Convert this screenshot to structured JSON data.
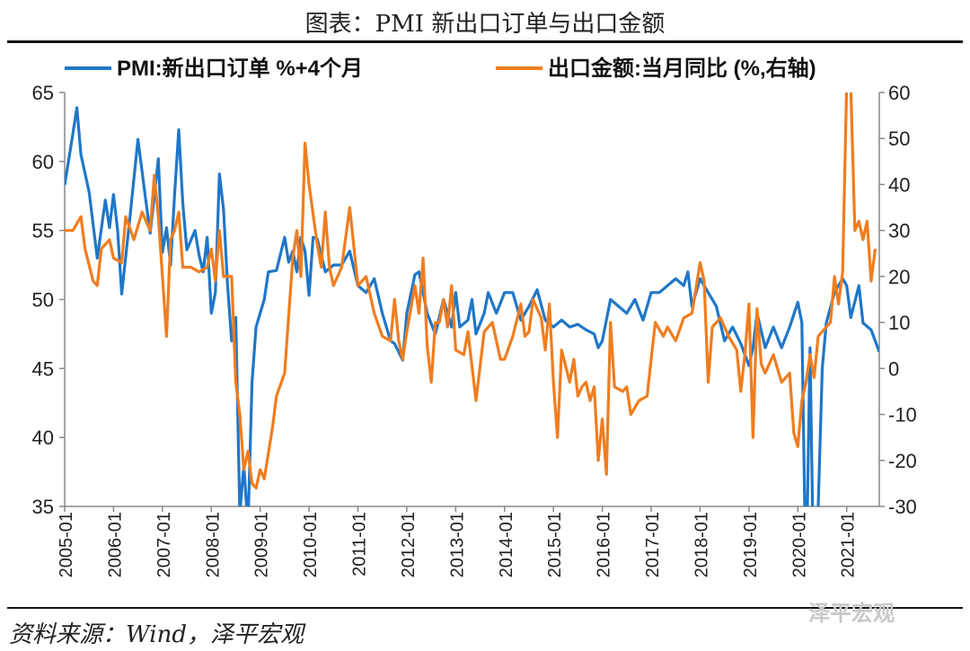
{
  "header": {
    "title": "图表：PMI 新出口订单与出口金额"
  },
  "footer": {
    "source": "资料来源：Wind，泽平宏观",
    "watermark": "泽平宏观"
  },
  "chart_data": {
    "type": "line",
    "title": "",
    "legend": {
      "placement": "top",
      "entries": [
        "PMI:新出口订单 %+4个月",
        "出口金额:当月同比 (%,右轴)"
      ]
    },
    "grid": false,
    "x_axis": {
      "type": "date",
      "start": "2005-01",
      "end": "2021-09",
      "tick_labels": [
        "2005-01",
        "2006-01",
        "2007-01",
        "2008-01",
        "2009-01",
        "2010-01",
        "2011-01",
        "2012-01",
        "2013-01",
        "2014-01",
        "2015-01",
        "2016-01",
        "2017-01",
        "2018-01",
        "2019-01",
        "2020-01",
        "2021-01"
      ]
    },
    "y_left": {
      "range": [
        35,
        65
      ],
      "ticks": [
        35,
        40,
        45,
        50,
        55,
        60,
        65
      ]
    },
    "y_right": {
      "range": [
        -30,
        60
      ],
      "ticks": [
        -30,
        -20,
        -10,
        0,
        10,
        20,
        30,
        40,
        50,
        60
      ]
    },
    "colors": {
      "pmi": "#1f77c8",
      "export": "#f07d1f"
    },
    "series": [
      {
        "name": "PMI:新出口订单 %+4个月",
        "axis": "left",
        "points": [
          [
            "2005-01",
            58.3
          ],
          [
            "2005-03",
            62.0
          ],
          [
            "2005-04",
            63.9
          ],
          [
            "2005-05",
            60.5
          ],
          [
            "2005-07",
            57.8
          ],
          [
            "2005-09",
            53.0
          ],
          [
            "2005-11",
            57.2
          ],
          [
            "2005-12",
            55.2
          ],
          [
            "2006-01",
            57.6
          ],
          [
            "2006-02",
            55.0
          ],
          [
            "2006-03",
            50.4
          ],
          [
            "2006-05",
            55.9
          ],
          [
            "2006-07",
            61.6
          ],
          [
            "2006-09",
            57.0
          ],
          [
            "2006-10",
            54.8
          ],
          [
            "2006-12",
            60.2
          ],
          [
            "2007-01",
            53.4
          ],
          [
            "2007-02",
            55.2
          ],
          [
            "2007-03",
            52.5
          ],
          [
            "2007-04",
            57.6
          ],
          [
            "2007-05",
            62.3
          ],
          [
            "2007-06",
            57.0
          ],
          [
            "2007-07",
            53.6
          ],
          [
            "2007-09",
            55.0
          ],
          [
            "2007-10",
            53.2
          ],
          [
            "2007-11",
            52.0
          ],
          [
            "2007-12",
            54.5
          ],
          [
            "2008-01",
            49.0
          ],
          [
            "2008-02",
            50.5
          ],
          [
            "2008-03",
            59.1
          ],
          [
            "2008-04",
            56.5
          ],
          [
            "2008-05",
            51.0
          ],
          [
            "2008-06",
            47.0
          ],
          [
            "2008-07",
            48.7
          ],
          [
            "2008-08",
            34.5
          ],
          [
            "2008-09",
            38.0
          ],
          [
            "2008-10",
            33.5
          ],
          [
            "2008-11",
            44.0
          ],
          [
            "2008-12",
            48.0
          ],
          [
            "2009-02",
            50.0
          ],
          [
            "2009-03",
            52.0
          ],
          [
            "2009-05",
            52.1
          ],
          [
            "2009-07",
            54.5
          ],
          [
            "2009-08",
            52.7
          ],
          [
            "2009-09",
            53.5
          ],
          [
            "2009-10",
            52.0
          ],
          [
            "2009-11",
            54.5
          ],
          [
            "2009-12",
            53.5
          ],
          [
            "2010-01",
            50.3
          ],
          [
            "2010-02",
            54.5
          ],
          [
            "2010-03",
            54.4
          ],
          [
            "2010-05",
            52.0
          ],
          [
            "2010-07",
            52.5
          ],
          [
            "2010-09",
            52.5
          ],
          [
            "2010-11",
            53.5
          ],
          [
            "2011-01",
            51.0
          ],
          [
            "2011-03",
            50.5
          ],
          [
            "2011-05",
            51.5
          ],
          [
            "2011-07",
            49.0
          ],
          [
            "2011-09",
            47.0
          ],
          [
            "2011-10",
            46.8
          ],
          [
            "2011-12",
            45.6
          ],
          [
            "2012-01",
            49.0
          ],
          [
            "2012-03",
            51.8
          ],
          [
            "2012-04",
            52.0
          ],
          [
            "2012-06",
            49.0
          ],
          [
            "2012-08",
            47.5
          ],
          [
            "2012-10",
            50.0
          ],
          [
            "2012-12",
            48.0
          ],
          [
            "2013-01",
            50.5
          ],
          [
            "2013-02",
            48.0
          ],
          [
            "2013-04",
            48.5
          ],
          [
            "2013-05",
            50.0
          ],
          [
            "2013-06",
            47.5
          ],
          [
            "2013-08",
            49.0
          ],
          [
            "2013-09",
            50.5
          ],
          [
            "2013-11",
            49.0
          ],
          [
            "2014-01",
            50.5
          ],
          [
            "2014-03",
            50.5
          ],
          [
            "2014-05",
            48.5
          ],
          [
            "2014-07",
            49.5
          ],
          [
            "2014-09",
            50.7
          ],
          [
            "2014-11",
            48.5
          ],
          [
            "2015-01",
            48.0
          ],
          [
            "2015-03",
            48.5
          ],
          [
            "2015-05",
            48.0
          ],
          [
            "2015-07",
            48.2
          ],
          [
            "2015-09",
            47.8
          ],
          [
            "2015-11",
            47.5
          ],
          [
            "2015-12",
            46.5
          ],
          [
            "2016-01",
            47.0
          ],
          [
            "2016-03",
            50.0
          ],
          [
            "2016-05",
            49.5
          ],
          [
            "2016-07",
            49.0
          ],
          [
            "2016-09",
            50.0
          ],
          [
            "2016-11",
            48.5
          ],
          [
            "2017-01",
            50.5
          ],
          [
            "2017-03",
            50.5
          ],
          [
            "2017-05",
            51.0
          ],
          [
            "2017-07",
            51.5
          ],
          [
            "2017-09",
            51.0
          ],
          [
            "2017-10",
            52.0
          ],
          [
            "2017-11",
            49.5
          ],
          [
            "2018-01",
            51.5
          ],
          [
            "2018-03",
            50.5
          ],
          [
            "2018-05",
            49.5
          ],
          [
            "2018-07",
            47.0
          ],
          [
            "2018-09",
            48.0
          ],
          [
            "2018-11",
            46.8
          ],
          [
            "2019-01",
            45.2
          ],
          [
            "2019-02",
            46.5
          ],
          [
            "2019-03",
            49.0
          ],
          [
            "2019-05",
            46.5
          ],
          [
            "2019-07",
            48.0
          ],
          [
            "2019-09",
            46.5
          ],
          [
            "2019-11",
            48.0
          ],
          [
            "2020-01",
            49.8
          ],
          [
            "2020-02",
            48.3
          ],
          [
            "2020-03",
            29.0
          ],
          [
            "2020-04",
            46.5
          ],
          [
            "2020-05",
            27.5
          ],
          [
            "2020-06",
            35.0
          ],
          [
            "2020-07",
            45.0
          ],
          [
            "2020-08",
            48.3
          ],
          [
            "2020-10",
            50.5
          ],
          [
            "2020-12",
            51.5
          ],
          [
            "2021-01",
            51.0
          ],
          [
            "2021-02",
            48.7
          ],
          [
            "2021-04",
            51.0
          ],
          [
            "2021-05",
            48.3
          ],
          [
            "2021-07",
            47.8
          ],
          [
            "2021-09",
            46.2
          ]
        ]
      },
      {
        "name": "出口金额:当月同比 (%,右轴)",
        "axis": "right",
        "points": [
          [
            "2005-01",
            30
          ],
          [
            "2005-03",
            30
          ],
          [
            "2005-05",
            33
          ],
          [
            "2005-06",
            26
          ],
          [
            "2005-08",
            19
          ],
          [
            "2005-09",
            18
          ],
          [
            "2005-10",
            26
          ],
          [
            "2005-12",
            28
          ],
          [
            "2006-01",
            24
          ],
          [
            "2006-03",
            23
          ],
          [
            "2006-04",
            33
          ],
          [
            "2006-06",
            28
          ],
          [
            "2006-08",
            34
          ],
          [
            "2006-10",
            30
          ],
          [
            "2006-11",
            42
          ],
          [
            "2006-12",
            33
          ],
          [
            "2007-02",
            7
          ],
          [
            "2007-03",
            28
          ],
          [
            "2007-04",
            30
          ],
          [
            "2007-05",
            34
          ],
          [
            "2007-06",
            22
          ],
          [
            "2007-08",
            22
          ],
          [
            "2007-10",
            21
          ],
          [
            "2007-12",
            22
          ],
          [
            "2008-01",
            26
          ],
          [
            "2008-02",
            19
          ],
          [
            "2008-03",
            30
          ],
          [
            "2008-04",
            20
          ],
          [
            "2008-06",
            20
          ],
          [
            "2008-07",
            -3
          ],
          [
            "2008-08",
            -10
          ],
          [
            "2008-09",
            -22
          ],
          [
            "2008-10",
            -18
          ],
          [
            "2008-11",
            -25
          ],
          [
            "2008-12",
            -26
          ],
          [
            "2009-01",
            -22
          ],
          [
            "2009-02",
            -24
          ],
          [
            "2009-04",
            -13
          ],
          [
            "2009-05",
            -6
          ],
          [
            "2009-07",
            -1
          ],
          [
            "2009-09",
            24
          ],
          [
            "2009-10",
            30
          ],
          [
            "2009-11",
            20
          ],
          [
            "2009-12",
            49
          ],
          [
            "2010-01",
            40
          ],
          [
            "2010-03",
            27
          ],
          [
            "2010-04",
            22
          ],
          [
            "2010-05",
            34
          ],
          [
            "2010-06",
            22
          ],
          [
            "2010-07",
            18
          ],
          [
            "2010-09",
            22
          ],
          [
            "2010-11",
            35
          ],
          [
            "2011-01",
            18
          ],
          [
            "2011-03",
            20
          ],
          [
            "2011-05",
            12
          ],
          [
            "2011-07",
            7
          ],
          [
            "2011-09",
            6
          ],
          [
            "2011-10",
            15
          ],
          [
            "2011-11",
            6
          ],
          [
            "2011-12",
            2
          ],
          [
            "2012-01",
            8
          ],
          [
            "2012-03",
            18
          ],
          [
            "2012-04",
            12
          ],
          [
            "2012-05",
            24
          ],
          [
            "2012-06",
            5
          ],
          [
            "2012-07",
            -3
          ],
          [
            "2012-08",
            10
          ],
          [
            "2012-09",
            10
          ],
          [
            "2012-10",
            15
          ],
          [
            "2012-11",
            9
          ],
          [
            "2012-12",
            18
          ],
          [
            "2013-01",
            4
          ],
          [
            "2013-03",
            3
          ],
          [
            "2013-04",
            8
          ],
          [
            "2013-06",
            -7
          ],
          [
            "2013-08",
            8
          ],
          [
            "2013-10",
            10
          ],
          [
            "2013-12",
            2
          ],
          [
            "2014-01",
            2
          ],
          [
            "2014-03",
            7
          ],
          [
            "2014-05",
            14
          ],
          [
            "2014-06",
            7
          ],
          [
            "2014-07",
            8
          ],
          [
            "2014-08",
            15
          ],
          [
            "2014-10",
            11
          ],
          [
            "2014-11",
            4
          ],
          [
            "2014-12",
            14
          ],
          [
            "2015-01",
            -3
          ],
          [
            "2015-02",
            -15
          ],
          [
            "2015-03",
            4
          ],
          [
            "2015-05",
            -3
          ],
          [
            "2015-06",
            2
          ],
          [
            "2015-07",
            -6
          ],
          [
            "2015-08",
            -4
          ],
          [
            "2015-09",
            -3
          ],
          [
            "2015-10",
            -7
          ],
          [
            "2015-11",
            -4
          ],
          [
            "2015-12",
            -20
          ],
          [
            "2016-01",
            -11
          ],
          [
            "2016-02",
            -23
          ],
          [
            "2016-03",
            10
          ],
          [
            "2016-04",
            -4
          ],
          [
            "2016-06",
            -5
          ],
          [
            "2016-07",
            -4
          ],
          [
            "2016-08",
            -10
          ],
          [
            "2016-10",
            -7
          ],
          [
            "2016-12",
            -6
          ],
          [
            "2017-01",
            2
          ],
          [
            "2017-02",
            10
          ],
          [
            "2017-04",
            7
          ],
          [
            "2017-05",
            9
          ],
          [
            "2017-07",
            6
          ],
          [
            "2017-09",
            11
          ],
          [
            "2017-11",
            12
          ],
          [
            "2018-01",
            23
          ],
          [
            "2018-02",
            19
          ],
          [
            "2018-03",
            -3
          ],
          [
            "2018-04",
            9
          ],
          [
            "2018-06",
            11
          ],
          [
            "2018-08",
            7
          ],
          [
            "2018-10",
            4
          ],
          [
            "2018-11",
            -5
          ],
          [
            "2018-12",
            3
          ],
          [
            "2019-01",
            14
          ],
          [
            "2019-02",
            -15
          ],
          [
            "2019-03",
            13
          ],
          [
            "2019-04",
            1
          ],
          [
            "2019-05",
            -1
          ],
          [
            "2019-07",
            3
          ],
          [
            "2019-09",
            -3
          ],
          [
            "2019-11",
            -1
          ],
          [
            "2019-12",
            -14
          ],
          [
            "2020-01",
            -17
          ],
          [
            "2020-02",
            -7
          ],
          [
            "2020-03",
            -3
          ],
          [
            "2020-04",
            3
          ],
          [
            "2020-05",
            -2
          ],
          [
            "2020-06",
            7
          ],
          [
            "2020-08",
            9
          ],
          [
            "2020-09",
            10
          ],
          [
            "2020-10",
            20
          ],
          [
            "2020-11",
            14
          ],
          [
            "2020-12",
            21
          ],
          [
            "2021-01",
            62
          ],
          [
            "2021-02",
            61
          ],
          [
            "2021-03",
            30
          ],
          [
            "2021-04",
            32
          ],
          [
            "2021-05",
            28
          ],
          [
            "2021-06",
            32
          ],
          [
            "2021-07",
            19
          ],
          [
            "2021-08",
            26
          ]
        ]
      }
    ]
  }
}
